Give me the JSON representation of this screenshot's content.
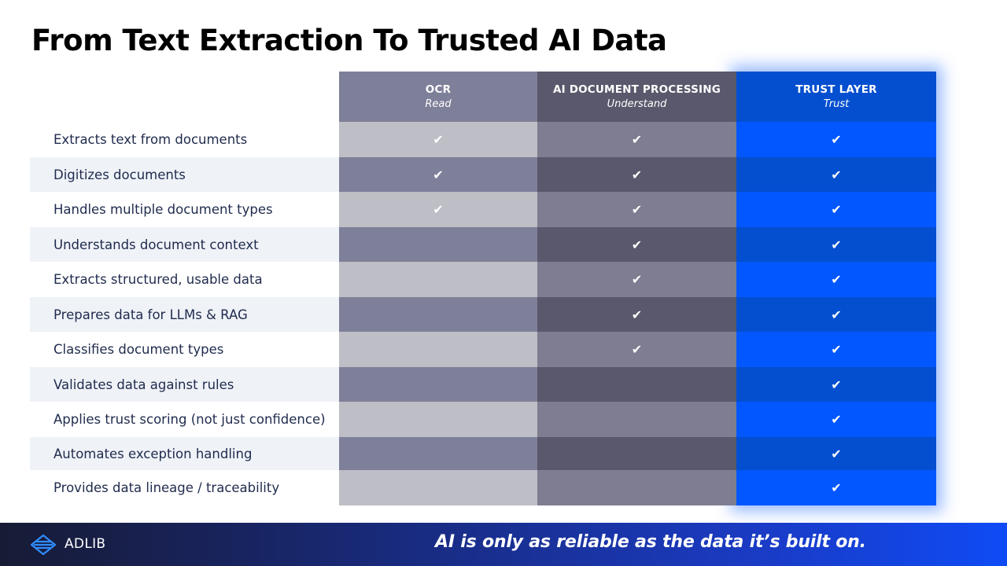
{
  "title": "From Text Extraction To Trusted AI Data",
  "columns": [
    {
      "name": "OCR",
      "sub": "Read"
    },
    {
      "name": "AI DOCUMENT PROCESSING",
      "sub": "Understand"
    },
    {
      "name": "TRUST LAYER",
      "sub": "Trust"
    }
  ],
  "check_glyph": "✔",
  "rows": [
    {
      "label": "Extracts text from documents",
      "checks": [
        true,
        true,
        true
      ]
    },
    {
      "label": "Digitizes documents",
      "checks": [
        true,
        true,
        true
      ]
    },
    {
      "label": "Handles multiple document types",
      "checks": [
        true,
        true,
        true
      ]
    },
    {
      "label": "Understands document context",
      "checks": [
        false,
        true,
        true
      ]
    },
    {
      "label": "Extracts structured, usable data",
      "checks": [
        false,
        true,
        true
      ]
    },
    {
      "label": "Prepares data for LLMs & RAG",
      "checks": [
        false,
        true,
        true
      ]
    },
    {
      "label": "Classifies document types",
      "checks": [
        false,
        true,
        true
      ]
    },
    {
      "label": "Validates data against rules",
      "checks": [
        false,
        false,
        true
      ]
    },
    {
      "label": "Applies trust scoring (not just confidence)",
      "checks": [
        false,
        false,
        true
      ]
    },
    {
      "label": "Automates exception handling",
      "checks": [
        false,
        false,
        true
      ]
    },
    {
      "label": "Provides data lineage / traceability",
      "checks": [
        false,
        false,
        true
      ]
    }
  ],
  "footer": {
    "brand": "ADLIB",
    "logo_icon": "adlib-logo-icon",
    "tagline": "AI is only as reliable as the data it’s built on."
  },
  "colors": {
    "ocr_light": "#bebec6",
    "ocr_dark": "#7e7f99",
    "ai_light": "#7e7d91",
    "ai_dark": "#5a586c",
    "trust_light": "#0357ff",
    "trust_dark": "#044fcf",
    "label_alt_bg": "#eff2f7"
  }
}
